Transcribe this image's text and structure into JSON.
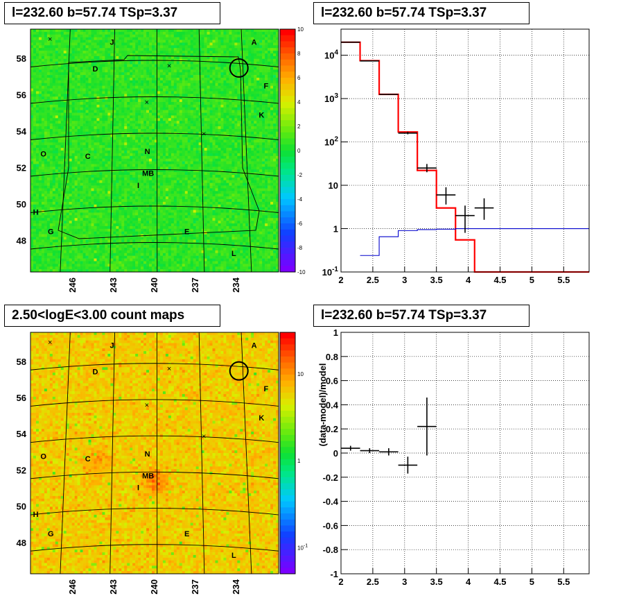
{
  "panels": {
    "map_top_title": "l=232.60 b=57.74 TSp=3.37",
    "spectrum_title": "l=232.60 b=57.74 TSp=3.37",
    "map_bottom_title": "2.50<logE<3.00 count maps",
    "residual_title": "l=232.60 b=57.74 TSp=3.37"
  },
  "colors": {
    "model_line": "#ff0000",
    "background_line": "#0000cc",
    "data_marker": "#000000"
  },
  "chart_data": [
    {
      "type": "heatmap",
      "name_hint": "residual significance map",
      "colorbar_ticks": [
        "10",
        "8",
        "6",
        "4",
        "2",
        "0",
        "-2",
        "-4",
        "-6",
        "-8",
        "-10"
      ],
      "colorbar_range": [
        -10,
        10
      ],
      "lon_ticks": [
        "246",
        "243",
        "240",
        "237",
        "234"
      ],
      "lat_ticks": [
        "58",
        "56",
        "54",
        "52",
        "50",
        "48"
      ],
      "source_labels": [
        "J",
        "A",
        "D",
        "F",
        "K",
        "O",
        "C",
        "N",
        "MB",
        "I",
        "H",
        "G",
        "E",
        "L"
      ],
      "marker": {
        "type": "circle",
        "lon": 232.6,
        "lat": 57.74
      }
    },
    {
      "type": "line",
      "yscale": "log",
      "xlim": [
        2,
        5.9
      ],
      "ylim": [
        0.1,
        40000
      ],
      "x_ticks": [
        "2",
        "2.5",
        "3",
        "3.5",
        "4",
        "4.5",
        "5",
        "5.5"
      ],
      "y_ticks": [
        "10^-1",
        "1",
        "10",
        "10^2",
        "10^3",
        "10^4"
      ],
      "grid": true,
      "series": [
        {
          "style": "step",
          "color": "red",
          "bins": [
            [
              2.0,
              2.3,
              20000
            ],
            [
              2.3,
              2.6,
              7500
            ],
            [
              2.6,
              2.9,
              1250
            ],
            [
              2.9,
              3.2,
              170
            ],
            [
              3.2,
              3.5,
              22
            ],
            [
              3.5,
              3.8,
              3.0
            ],
            [
              3.8,
              4.1,
              0.55
            ],
            [
              4.1,
              4.4,
              0.1
            ],
            [
              4.4,
              5.9,
              0.1
            ]
          ]
        },
        {
          "style": "step",
          "color": "blue",
          "bins": [
            [
              2.3,
              2.6,
              0.24
            ],
            [
              2.6,
              2.9,
              0.65
            ],
            [
              2.9,
              3.2,
              0.9
            ],
            [
              3.2,
              3.5,
              0.95
            ],
            [
              3.5,
              3.8,
              0.97
            ],
            [
              3.8,
              5.9,
              1.0
            ]
          ]
        },
        {
          "style": "points",
          "color": "black",
          "points": [
            {
              "x": 2.15,
              "y": 20000,
              "xerr": 0.15,
              "ylo": 19800,
              "yhi": 20200
            },
            {
              "x": 2.45,
              "y": 7400,
              "xerr": 0.15,
              "ylo": 7300,
              "yhi": 7500
            },
            {
              "x": 2.75,
              "y": 1250,
              "xerr": 0.15,
              "ylo": 1220,
              "yhi": 1280
            },
            {
              "x": 3.05,
              "y": 160,
              "xerr": 0.15,
              "ylo": 150,
              "yhi": 172
            },
            {
              "x": 3.35,
              "y": 25,
              "xerr": 0.15,
              "ylo": 20,
              "yhi": 31
            },
            {
              "x": 3.65,
              "y": 6,
              "xerr": 0.15,
              "ylo": 3.6,
              "yhi": 9
            },
            {
              "x": 3.95,
              "y": 2,
              "xerr": 0.15,
              "ylo": 0.8,
              "yhi": 3.4
            },
            {
              "x": 4.25,
              "y": 3,
              "xerr": 0.15,
              "ylo": 1.6,
              "yhi": 5
            }
          ]
        }
      ]
    },
    {
      "type": "heatmap",
      "name_hint": "count map",
      "colorbar_ticks": [
        "10",
        "1",
        "10^-1"
      ],
      "colorbar_range": [
        0.05,
        30
      ],
      "lon_ticks": [
        "246",
        "243",
        "240",
        "237",
        "234"
      ],
      "lat_ticks": [
        "58",
        "56",
        "54",
        "52",
        "50",
        "48"
      ],
      "source_labels": [
        "J",
        "A",
        "D",
        "F",
        "K",
        "O",
        "C",
        "N",
        "MB",
        "I",
        "H",
        "G",
        "E",
        "L"
      ],
      "marker": {
        "type": "circle",
        "lon": 232.6,
        "lat": 57.74
      }
    },
    {
      "type": "scatter",
      "ylabel": "(data-model)/model",
      "xlim": [
        2,
        5.9
      ],
      "ylim": [
        -1,
        1
      ],
      "x_ticks": [
        "2",
        "2.5",
        "3",
        "3.5",
        "4",
        "4.5",
        "5",
        "5.5"
      ],
      "y_ticks": [
        "1",
        "0.8",
        "0.6",
        "0.4",
        "0.2",
        "0",
        "-0.2",
        "-0.4",
        "-0.6",
        "-0.8",
        "-1"
      ],
      "grid": true,
      "points": [
        {
          "x": 2.15,
          "y": 0.04,
          "xerr": 0.15,
          "ylo": 0.02,
          "yhi": 0.06
        },
        {
          "x": 2.45,
          "y": 0.02,
          "xerr": 0.15,
          "ylo": 0.0,
          "yhi": 0.04
        },
        {
          "x": 2.75,
          "y": 0.01,
          "xerr": 0.15,
          "ylo": -0.02,
          "yhi": 0.04
        },
        {
          "x": 3.05,
          "y": -0.1,
          "xerr": 0.15,
          "ylo": -0.17,
          "yhi": -0.03
        },
        {
          "x": 3.35,
          "y": 0.22,
          "xerr": 0.15,
          "ylo": -0.02,
          "yhi": 0.46
        }
      ]
    }
  ]
}
